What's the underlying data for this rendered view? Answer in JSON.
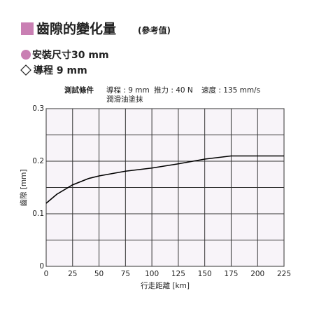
{
  "title": "齒隙的變化量",
  "title_note": "(參考值)",
  "specs": [
    "安裝尺寸30 mm",
    "導程 9 mm"
  ],
  "conditions": {
    "label": "測試條件",
    "items": [
      "導程 : 9 mm",
      "推力 : 40 N",
      "速度 : 135 mm/s"
    ],
    "note": "潤滑油塗抹"
  },
  "chart_data": {
    "type": "line",
    "x_label": "行走距離 [km]",
    "y_label": "齒隙 [mm]",
    "x": [
      0,
      10,
      25,
      40,
      50,
      75,
      100,
      125,
      150,
      175,
      200,
      225
    ],
    "series": [
      {
        "name": "安裝尺寸30 mm",
        "color": "#000000",
        "values": [
          0.12,
          0.137,
          0.155,
          0.167,
          0.172,
          0.181,
          0.187,
          0.195,
          0.204,
          0.21,
          0.21,
          0.21
        ]
      }
    ],
    "xlim": [
      0,
      225
    ],
    "xticks": [
      0,
      25,
      50,
      75,
      100,
      125,
      150,
      175,
      200,
      225
    ],
    "ylim": [
      0,
      0.3
    ],
    "yticks": [
      0,
      0.1,
      0.2,
      0.3
    ],
    "minor_yticks": [
      0.05,
      0.15,
      0.25
    ],
    "grid": true
  }
}
